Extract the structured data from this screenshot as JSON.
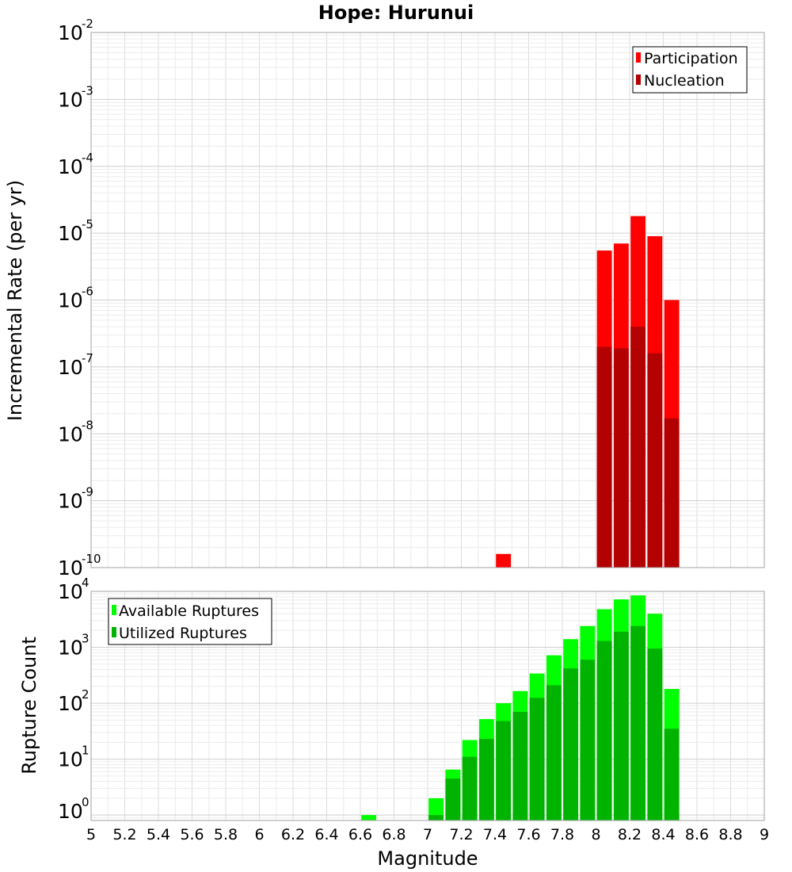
{
  "chart_data": [
    {
      "type": "bar",
      "title": "Hope: Hurunui",
      "xlabel": "",
      "ylabel": "Incremental Rate (per yr)",
      "xlim": [
        5,
        9
      ],
      "yscale": "log",
      "ylim": [
        1e-10,
        0.01
      ],
      "y_ticks": [
        {
          "base": "10",
          "exp": "-10"
        },
        {
          "base": "10",
          "exp": "-9"
        },
        {
          "base": "10",
          "exp": "-8"
        },
        {
          "base": "10",
          "exp": "-7"
        },
        {
          "base": "10",
          "exp": "-6"
        },
        {
          "base": "10",
          "exp": "-5"
        },
        {
          "base": "10",
          "exp": "-4"
        },
        {
          "base": "10",
          "exp": "-3"
        },
        {
          "base": "10",
          "exp": "-2"
        }
      ],
      "grid": true,
      "legend_position": "top-right",
      "bin_width": 0.1,
      "series": [
        {
          "name": "Participation",
          "color": "#ff0000",
          "points": [
            [
              7.45,
              1.6e-10
            ],
            [
              8.05,
              5.5e-06
            ],
            [
              8.15,
              7e-06
            ],
            [
              8.25,
              1.8e-05
            ],
            [
              8.35,
              9e-06
            ],
            [
              8.45,
              1e-06
            ]
          ]
        },
        {
          "name": "Nucleation",
          "color": "#b30000",
          "points": [
            [
              8.05,
              2e-07
            ],
            [
              8.15,
              1.9e-07
            ],
            [
              8.25,
              4e-07
            ],
            [
              8.35,
              1.6e-07
            ],
            [
              8.45,
              1.7e-08
            ]
          ]
        }
      ]
    },
    {
      "type": "bar",
      "title": "",
      "xlabel": "Magnitude",
      "ylabel": "Rupture Count",
      "xlim": [
        5,
        9
      ],
      "x_ticks": [
        "5",
        "5.2",
        "5.4",
        "5.6",
        "5.8",
        "6",
        "6.2",
        "6.4",
        "6.6",
        "6.8",
        "7",
        "7.2",
        "7.4",
        "7.6",
        "7.8",
        "8",
        "8.2",
        "8.4",
        "8.6",
        "8.8",
        "9"
      ],
      "yscale": "log",
      "ylim": [
        0.8,
        10000
      ],
      "y_ticks": [
        {
          "base": "10",
          "exp": "0",
          "value": 1
        },
        {
          "base": "10",
          "exp": "1",
          "value": 10
        },
        {
          "base": "10",
          "exp": "2",
          "value": 100
        },
        {
          "base": "10",
          "exp": "3",
          "value": 1000
        },
        {
          "base": "10",
          "exp": "4",
          "value": 10000
        }
      ],
      "grid": true,
      "legend_position": "top-left",
      "bin_width": 0.1,
      "series": [
        {
          "name": "Available Ruptures",
          "color": "#00ff00",
          "points": [
            [
              6.65,
              1
            ],
            [
              7.05,
              2
            ],
            [
              7.15,
              6.5
            ],
            [
              7.25,
              22
            ],
            [
              7.35,
              52
            ],
            [
              7.45,
              100
            ],
            [
              7.55,
              165
            ],
            [
              7.65,
              340
            ],
            [
              7.75,
              720
            ],
            [
              7.85,
              1400
            ],
            [
              7.95,
              2400
            ],
            [
              8.05,
              4800
            ],
            [
              8.15,
              7200
            ],
            [
              8.25,
              8500
            ],
            [
              8.35,
              4000
            ],
            [
              8.45,
              180
            ]
          ]
        },
        {
          "name": "Utilized Ruptures",
          "color": "#00b300",
          "points": [
            [
              7.05,
              1
            ],
            [
              7.15,
              4.5
            ],
            [
              7.25,
              11
            ],
            [
              7.35,
              23
            ],
            [
              7.45,
              48
            ],
            [
              7.55,
              70
            ],
            [
              7.65,
              125
            ],
            [
              7.75,
              210
            ],
            [
              7.85,
              420
            ],
            [
              7.95,
              600
            ],
            [
              8.05,
              1300
            ],
            [
              8.15,
              1900
            ],
            [
              8.25,
              2400
            ],
            [
              8.35,
              950
            ],
            [
              8.45,
              35
            ]
          ]
        }
      ]
    }
  ]
}
